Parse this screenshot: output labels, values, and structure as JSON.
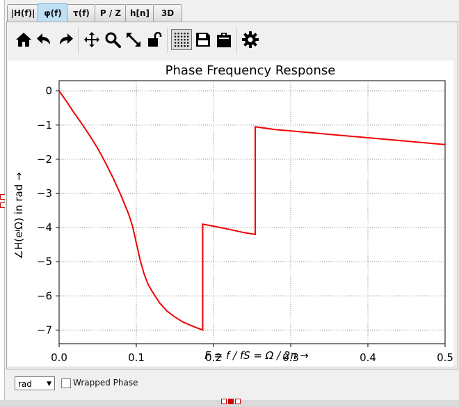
{
  "tabs": [
    {
      "label": "|H(f)|",
      "active": false
    },
    {
      "label": "φ(f)",
      "active": true
    },
    {
      "label": "τ(f)",
      "active": false
    },
    {
      "label": "P / Z",
      "active": false
    },
    {
      "label": "h[n]",
      "active": false
    },
    {
      "label": "3D",
      "active": false
    }
  ],
  "toolbar": {
    "icons": [
      "home-icon",
      "undo-icon",
      "redo-icon",
      "pan-icon",
      "zoom-icon",
      "autoscale-icon",
      "lock-icon",
      "grid-icon",
      "save-icon",
      "clipboard-icon",
      "settings-icon"
    ]
  },
  "chart_data": {
    "type": "line",
    "title": "Phase Frequency Response",
    "xlabel": "F = f / fS = Ω / 2π →",
    "ylabel": "∠H(eʲΩ) in rad →",
    "xlim": [
      0.0,
      0.5
    ],
    "ylim": [
      -7.4,
      0.3
    ],
    "xticks": [
      "0.0",
      "0.1",
      "0.2",
      "0.3",
      "0.4",
      "0.5"
    ],
    "yticks": [
      "0",
      "−1",
      "−2",
      "−3",
      "−4",
      "−5",
      "−6",
      "−7"
    ],
    "grid": true,
    "color": "#ee0000",
    "series": [
      {
        "x": [
          0.0,
          0.01,
          0.02,
          0.03,
          0.04,
          0.05,
          0.06,
          0.07,
          0.08,
          0.09,
          0.095,
          0.1,
          0.105,
          0.11,
          0.115,
          0.12,
          0.13,
          0.14,
          0.15,
          0.16,
          0.17,
          0.18,
          0.186,
          0.186,
          0.2,
          0.22,
          0.24,
          0.254,
          0.254,
          0.28,
          0.3,
          0.35,
          0.4,
          0.45,
          0.5
        ],
        "y": [
          0.0,
          -0.32,
          -0.66,
          -0.98,
          -1.32,
          -1.68,
          -2.1,
          -2.55,
          -3.05,
          -3.6,
          -3.95,
          -4.45,
          -4.95,
          -5.35,
          -5.65,
          -5.85,
          -6.2,
          -6.45,
          -6.62,
          -6.76,
          -6.86,
          -6.95,
          -7.0,
          -3.9,
          -3.96,
          -4.05,
          -4.15,
          -4.2,
          -1.05,
          -1.13,
          -1.17,
          -1.27,
          -1.37,
          -1.47,
          -1.57
        ]
      }
    ]
  },
  "bottom": {
    "unit_select": "rad",
    "wrapped_label": "Wrapped Phase",
    "wrapped_checked": false
  }
}
